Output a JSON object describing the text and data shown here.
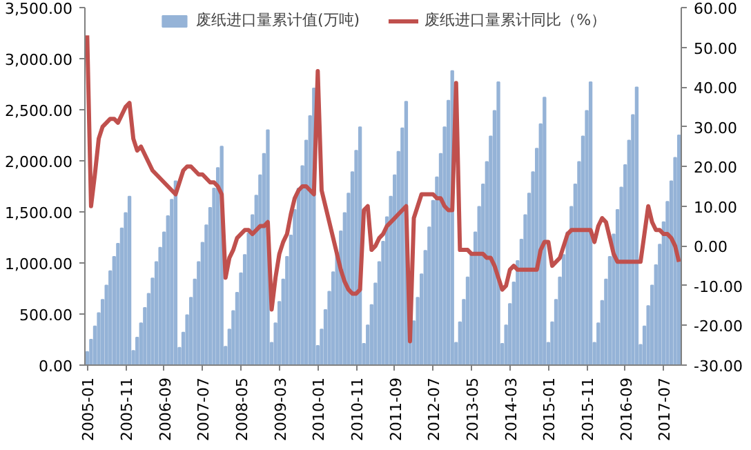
{
  "chart_data": {
    "type": "bar",
    "categories": [
      "2005-01",
      null,
      null,
      null,
      null,
      null,
      null,
      null,
      null,
      null,
      "2005-11",
      null,
      null,
      null,
      null,
      null,
      null,
      null,
      null,
      null,
      "2006-09",
      null,
      null,
      null,
      null,
      null,
      null,
      null,
      null,
      null,
      "2007-07",
      null,
      null,
      null,
      null,
      null,
      null,
      null,
      null,
      null,
      "2008-05",
      null,
      null,
      null,
      null,
      null,
      null,
      null,
      null,
      null,
      "2009-03",
      null,
      null,
      null,
      null,
      null,
      null,
      null,
      null,
      null,
      "2010-01",
      null,
      null,
      null,
      null,
      null,
      null,
      null,
      null,
      null,
      "2010-11",
      null,
      null,
      null,
      null,
      null,
      null,
      null,
      null,
      null,
      "2011-09",
      null,
      null,
      null,
      null,
      null,
      null,
      null,
      null,
      null,
      "2012-07",
      null,
      null,
      null,
      null,
      null,
      null,
      null,
      null,
      null,
      "2013-05",
      null,
      null,
      null,
      null,
      null,
      null,
      null,
      null,
      null,
      "2014-03",
      null,
      null,
      null,
      null,
      null,
      null,
      null,
      null,
      null,
      "2015-01",
      null,
      null,
      null,
      null,
      null,
      null,
      null,
      null,
      null,
      "2015-11",
      null,
      null,
      null,
      null,
      null,
      null,
      null,
      null,
      null,
      "2016-09",
      null,
      null,
      null,
      null,
      null,
      null,
      null,
      null,
      null,
      "2017-07",
      null,
      null,
      null,
      null
    ],
    "series": [
      {
        "name": "废纸进口量累计值(万吨)",
        "color": "#95b3d7",
        "values": [
          130,
          250,
          380,
          510,
          640,
          780,
          920,
          1060,
          1190,
          1340,
          1490,
          1650,
          140,
          270,
          410,
          560,
          700,
          850,
          1010,
          1150,
          1300,
          1460,
          1620,
          1800,
          170,
          320,
          490,
          660,
          840,
          1010,
          1200,
          1370,
          1540,
          1730,
          1930,
          2140,
          180,
          350,
          530,
          710,
          900,
          1080,
          1290,
          1470,
          1660,
          1860,
          2070,
          2300,
          220,
          410,
          620,
          840,
          1060,
          1270,
          1520,
          1730,
          1950,
          2200,
          2440,
          2710,
          190,
          350,
          540,
          720,
          910,
          1100,
          1310,
          1490,
          1680,
          1890,
          2100,
          2330,
          210,
          390,
          590,
          800,
          1010,
          1210,
          1450,
          1650,
          1860,
          2090,
          2320,
          2580,
          230,
          430,
          660,
          890,
          1120,
          1350,
          1610,
          1840,
          2070,
          2330,
          2590,
          2880,
          220,
          420,
          640,
          860,
          1080,
          1300,
          1550,
          1770,
          1990,
          2240,
          2490,
          2770,
          210,
          390,
          600,
          810,
          1020,
          1230,
          1470,
          1680,
          1890,
          2120,
          2360,
          2620,
          220,
          420,
          640,
          860,
          1080,
          1300,
          1550,
          1770,
          1990,
          2240,
          2490,
          2770,
          220,
          410,
          630,
          840,
          1060,
          1280,
          1520,
          1740,
          1960,
          2200,
          2450,
          2720,
          200,
          380,
          580,
          780,
          980,
          1180,
          1400,
          1600,
          1800,
          2030,
          2250
        ]
      },
      {
        "name": "废纸进口量累计同比（%）",
        "type": "line",
        "axis": "y2",
        "color": "#c0504d",
        "values": [
          53,
          10,
          18,
          27,
          30,
          31,
          32,
          32,
          31,
          33,
          35,
          36,
          27,
          24,
          25,
          23,
          21,
          19,
          18,
          17,
          16,
          15,
          14,
          13,
          16,
          19,
          20,
          20,
          19,
          18,
          18,
          17,
          16,
          16,
          15,
          13,
          -8,
          -3,
          -1,
          2,
          3,
          4,
          4,
          3,
          4,
          5,
          5,
          6,
          -16,
          -8,
          -2,
          1,
          3,
          8,
          12,
          14,
          15,
          15,
          14,
          13,
          44,
          14,
          10,
          6,
          2,
          -2,
          -6,
          -9,
          -11,
          -12,
          -12,
          -11,
          9,
          10,
          -1,
          0,
          2,
          3,
          5,
          6,
          7,
          8,
          9,
          10,
          -24,
          7,
          10,
          13,
          13,
          13,
          13,
          12,
          12,
          10,
          9,
          9,
          41,
          -1,
          -1,
          -1,
          -2,
          -2,
          -2,
          -2,
          -3,
          -3,
          -5,
          -8,
          -11,
          -10,
          -6,
          -5,
          -6,
          -6,
          -6,
          -6,
          -6,
          -6,
          -1,
          1,
          1,
          -5,
          -4,
          -3,
          0,
          3,
          4,
          4,
          4,
          4,
          4,
          4,
          1,
          5,
          7,
          6,
          2,
          -2,
          -4,
          -4,
          -4,
          -4,
          -4,
          -4,
          -4,
          3,
          10,
          6,
          4,
          4,
          3,
          3,
          2,
          0,
          -4
        ]
      }
    ],
    "ylim": [
      0,
      3500
    ],
    "yticks": [
      {
        "value": 0,
        "label": "0.00"
      },
      {
        "value": 500,
        "label": "500.00"
      },
      {
        "value": 1000,
        "label": "1,000.00"
      },
      {
        "value": 1500,
        "label": "1,500.00"
      },
      {
        "value": 2000,
        "label": "2,000.00"
      },
      {
        "value": 2500,
        "label": "2,500.00"
      },
      {
        "value": 3000,
        "label": "3,000.00"
      },
      {
        "value": 3500,
        "label": "3,500.00"
      }
    ],
    "y2lim": [
      -30,
      60
    ],
    "y2ticks": [
      {
        "value": -30,
        "label": "-30.00"
      },
      {
        "value": -20,
        "label": "-20.00"
      },
      {
        "value": -10,
        "label": "-10.00"
      },
      {
        "value": 0,
        "label": "0.00"
      },
      {
        "value": 10,
        "label": "10.00"
      },
      {
        "value": 20,
        "label": "20.00"
      },
      {
        "value": 30,
        "label": "30.00"
      },
      {
        "value": 40,
        "label": "40.00"
      },
      {
        "value": 50,
        "label": "50.00"
      },
      {
        "value": 60,
        "label": "60.00"
      }
    ],
    "grid": false,
    "legend": "top",
    "marker": "none",
    "line_style": "solid"
  }
}
